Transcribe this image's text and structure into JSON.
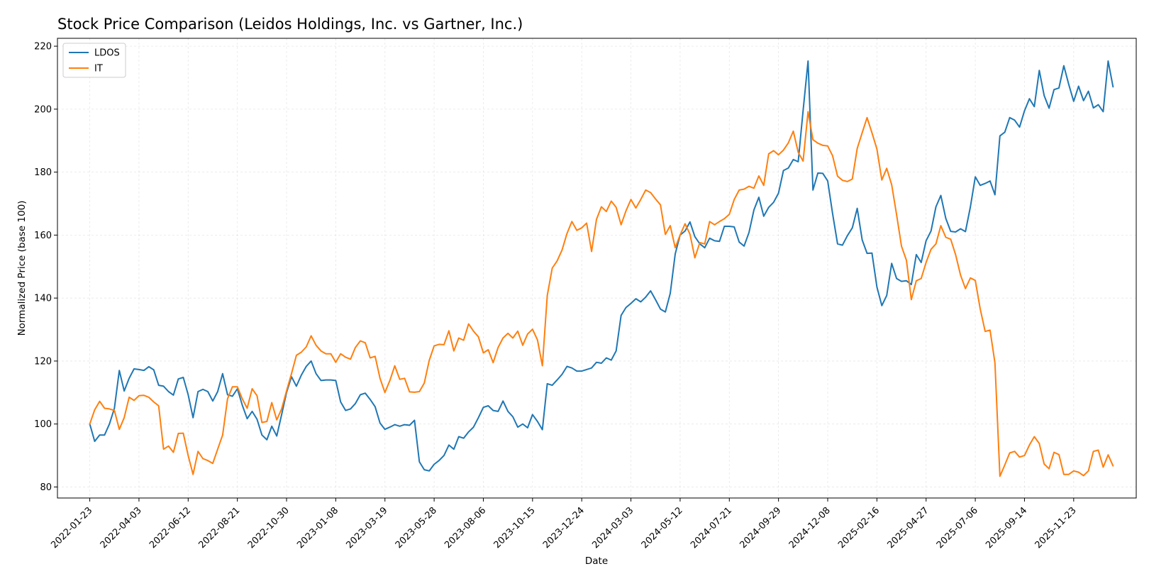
{
  "chart_data": {
    "type": "line",
    "title": "Stock Price Comparison (Leidos Holdings, Inc. vs Gartner, Inc.)",
    "xlabel": "Date",
    "ylabel": "Normalized Price (base 100)",
    "x_tick_labels": [
      "2022-01-23",
      "2022-04-03",
      "2022-06-12",
      "2022-08-21",
      "2022-10-30",
      "2023-01-08",
      "2023-03-19",
      "2023-05-28",
      "2023-08-06",
      "2023-10-15",
      "2023-12-24",
      "2024-03-03",
      "2024-05-12",
      "2024-07-21",
      "2024-09-29",
      "2024-12-08",
      "2025-02-16",
      "2025-04-27",
      "2025-07-06",
      "2025-09-14",
      "2025-11-23"
    ],
    "y_ticks": [
      80,
      100,
      120,
      140,
      160,
      180,
      200,
      220
    ],
    "xlim": [
      "2021-12-08",
      "2026-02-20"
    ],
    "ylim": [
      76.5,
      222.5
    ],
    "grid": true,
    "legend_position": "top-left",
    "start_date": "2022-01-23",
    "step_days": 7,
    "series": [
      {
        "name": "LDOS",
        "color": "#1f77b4",
        "values": [
          100,
          94.5,
          96.5,
          96.5,
          100,
          105,
          117,
          110.5,
          114.5,
          117.5,
          117.3,
          117,
          118.2,
          117.2,
          112.3,
          112,
          110.3,
          109.2,
          114.3,
          114.8,
          109.3,
          102,
          110.3,
          111,
          110.3,
          107.3,
          110.3,
          116,
          109.3,
          108.8,
          111.2,
          106,
          101.7,
          104,
          101.5,
          96.5,
          95,
          99.3,
          96.2,
          103,
          110,
          115,
          112,
          115.5,
          118.3,
          120,
          116,
          113.8,
          114,
          114,
          113.8,
          107,
          104.3,
          104.8,
          106.5,
          109.3,
          109.8,
          107.8,
          105.5,
          100.3,
          98.3,
          99,
          99.8,
          99.3,
          99.8,
          99.6,
          101.2,
          88,
          85.5,
          85.1,
          87.2,
          88.4,
          90,
          93.3,
          92,
          96,
          95.5,
          97.5,
          99,
          102,
          105.3,
          105.8,
          104.3,
          104,
          107.3,
          104,
          102.3,
          99,
          100,
          98.8,
          103,
          100.8,
          98.2,
          112.8,
          112.3,
          114,
          115.8,
          118.3,
          117.8,
          116.8,
          116.8,
          117.3,
          117.8,
          119.6,
          119.3,
          121,
          120.3,
          123.2,
          134.5,
          137,
          138.3,
          139.8,
          138.8,
          140.3,
          142.3,
          139.5,
          136.5,
          135.6,
          141.5,
          154,
          160,
          161.3,
          164.2,
          159.5,
          157.2,
          156,
          159,
          158.2,
          158,
          162.8,
          162.8,
          162.6,
          157.8,
          156.5,
          160.8,
          168,
          172,
          166,
          168.8,
          170.4,
          173.3,
          180.5,
          181.3,
          184,
          183.3,
          199.5,
          215.3,
          174.3,
          179.7,
          179.6,
          177.2,
          166.8,
          157.2,
          156.8,
          159.8,
          162.3,
          168.5,
          158.5,
          154.2,
          154.3,
          143.5,
          137.6,
          140.8,
          151,
          146.2,
          145.3,
          145.5,
          144.3,
          153.8,
          151.3,
          158.2,
          161.3,
          169,
          172.6,
          165.3,
          161.2,
          161,
          162,
          161.1,
          169,
          178.5,
          175.8,
          176.4,
          177.2,
          172.8,
          191.5,
          192.7,
          197.3,
          196.5,
          194.3,
          199.5,
          203.3,
          200.8,
          212.3,
          204.3,
          200.3,
          206.2,
          206.7,
          213.8,
          207.8,
          202.5,
          207.3,
          202.7,
          205.7,
          200.4,
          201.4,
          199.2,
          215.3,
          207.1
        ]
      },
      {
        "name": "IT",
        "color": "#ff7f0e",
        "values": [
          100,
          104.5,
          107.2,
          105,
          104.8,
          104.3,
          98.3,
          102,
          108.5,
          107.5,
          109,
          109.1,
          108.5,
          107,
          105.8,
          92,
          93,
          91,
          97,
          97.1,
          90,
          84,
          91.3,
          89,
          88.4,
          87.5,
          92,
          96.5,
          108,
          111.8,
          111.8,
          108,
          105,
          111.2,
          109,
          100.5,
          100.8,
          106.8,
          101.3,
          104.8,
          110.5,
          116,
          121.8,
          122.8,
          124.5,
          128,
          125,
          123.2,
          122.3,
          122.3,
          119.6,
          122.3,
          121.2,
          120.6,
          124.3,
          126.4,
          125.8,
          121,
          121.5,
          114.5,
          110,
          113.8,
          118.5,
          114.2,
          114.5,
          110.2,
          110.1,
          110.3,
          113,
          120.2,
          124.8,
          125.3,
          125.2,
          129.6,
          123.2,
          127.3,
          126.6,
          131.8,
          129.5,
          127.7,
          122.6,
          123.6,
          119.5,
          124.3,
          127.3,
          128.8,
          127.3,
          129.5,
          125,
          128.6,
          130.1,
          126.7,
          118.5,
          140.8,
          149.5,
          151.8,
          155.3,
          160.5,
          164.3,
          161.5,
          162.3,
          163.8,
          154.8,
          165,
          169,
          167.5,
          170.8,
          168.8,
          163.3,
          167.7,
          171.3,
          168.6,
          171.3,
          174.3,
          173.5,
          171.5,
          169.6,
          160.2,
          163,
          156,
          160,
          163.6,
          160.3,
          152.8,
          157.6,
          157.2,
          164.3,
          163.3,
          164.3,
          165.2,
          166.6,
          171.3,
          174.3,
          174.6,
          175.5,
          174.9,
          178.8,
          175.8,
          185.8,
          186.8,
          185.5,
          187,
          189.3,
          193,
          186.3,
          183.5,
          199.2,
          190.3,
          189.2,
          188.5,
          188.3,
          185.2,
          178.7,
          177.4,
          177,
          177.8,
          187.5,
          192.5,
          197.3,
          192.5,
          187.3,
          177.5,
          181.2,
          176,
          166.5,
          156.5,
          152,
          139.5,
          145.5,
          146.2,
          151.3,
          155.5,
          157.2,
          163,
          159.3,
          158.7,
          153.8,
          147.3,
          143,
          146.4,
          145.6,
          136.6,
          129.4,
          129.8,
          119.4,
          83.4,
          87,
          90.8,
          91.3,
          89.5,
          90,
          93.3,
          96,
          93.8,
          87.3,
          85.8,
          91,
          90.3,
          84,
          84,
          85.1,
          84.7,
          83.6,
          85.1,
          91.3,
          91.7,
          86.3,
          90.2,
          86.7
        ]
      }
    ]
  }
}
